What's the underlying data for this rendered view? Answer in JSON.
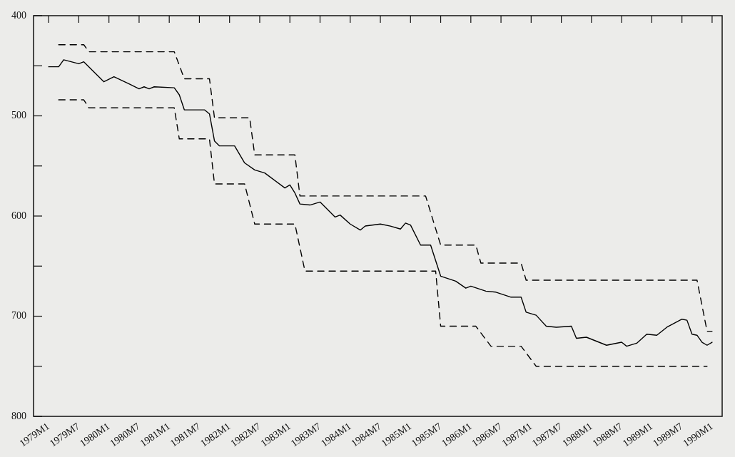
{
  "chart_data": {
    "type": "line",
    "line_style": "solid",
    "marker": "none",
    "grid": false,
    "legend": false,
    "xlim": [
      "1978-10",
      "1990-03"
    ],
    "xticks": [
      {
        "value": "1979-01",
        "label": "1979M1"
      },
      {
        "value": "1979-07",
        "label": "1979M7"
      },
      {
        "value": "1980-01",
        "label": "1980M1"
      },
      {
        "value": "1980-07",
        "label": "1980M7"
      },
      {
        "value": "1981-01",
        "label": "1981M1"
      },
      {
        "value": "1981-07",
        "label": "1981M7"
      },
      {
        "value": "1982-01",
        "label": "1982M1"
      },
      {
        "value": "1982-07",
        "label": "1982M7"
      },
      {
        "value": "1983-01",
        "label": "1983M1"
      },
      {
        "value": "1983-07",
        "label": "1983M7"
      },
      {
        "value": "1984-01",
        "label": "1984M1"
      },
      {
        "value": "1984-07",
        "label": "1984M7"
      },
      {
        "value": "1985-01",
        "label": "1985M1"
      },
      {
        "value": "1985-07",
        "label": "1985M7"
      },
      {
        "value": "1986-01",
        "label": "1986M1"
      },
      {
        "value": "1986-07",
        "label": "1986M7"
      },
      {
        "value": "1987-01",
        "label": "1987M1"
      },
      {
        "value": "1987-07",
        "label": "1987M7"
      },
      {
        "value": "1988-01",
        "label": "1988M1"
      },
      {
        "value": "1988-07",
        "label": "1988M7"
      },
      {
        "value": "1989-01",
        "label": "1989M1"
      },
      {
        "value": "1989-07",
        "label": "1989M7"
      },
      {
        "value": "1990-01",
        "label": "1990M1"
      }
    ],
    "ylim": [
      800,
      400
    ],
    "yticks": [
      400,
      {
        "value": 450,
        "label": null
      },
      500,
      {
        "value": 550,
        "label": null
      },
      600,
      {
        "value": 650,
        "label": null
      },
      700,
      {
        "value": 750,
        "label": null
      },
      800
    ],
    "series": [
      {
        "color": "#000000",
        "x": [
          "1979-01",
          "1979-03",
          "1979-04",
          "1979-07",
          "1979-08",
          "1979-11",
          "1979-12",
          "1980-02",
          "1980-05",
          "1980-07",
          "1980-08",
          "1980-09",
          "1980-10",
          "1981-02",
          "1981-03",
          "1981-04",
          "1981-08",
          "1981-09",
          "1981-10",
          "1981-11",
          "1982-02",
          "1982-04",
          "1982-06",
          "1982-08",
          "1982-12",
          "1983-01",
          "1983-02",
          "1983-03",
          "1983-05",
          "1983-07",
          "1983-10",
          "1983-11",
          "1984-01",
          "1984-03",
          "1984-04",
          "1984-07",
          "1984-09",
          "1984-11",
          "1984-12",
          "1985-01",
          "1985-03",
          "1985-05",
          "1985-07",
          "1985-10",
          "1985-12",
          "1986-01",
          "1986-04",
          "1986-06",
          "1986-09",
          "1986-11",
          "1986-12",
          "1987-02",
          "1987-04",
          "1987-06",
          "1987-09",
          "1987-10",
          "1987-12",
          "1988-04",
          "1988-07",
          "1988-08",
          "1988-10",
          "1988-12",
          "1989-02",
          "1989-04",
          "1989-07",
          "1989-08",
          "1989-09",
          "1989-10",
          "1989-11",
          "1989-12",
          "1990-01"
        ],
        "values": [
          451,
          451,
          444,
          448,
          446,
          461,
          466,
          461,
          468,
          473,
          471,
          473,
          471,
          472,
          479,
          494,
          494,
          498,
          525,
          530,
          530,
          547,
          554,
          557,
          572,
          569,
          577,
          588,
          589,
          586,
          601,
          599,
          608,
          614,
          610,
          608,
          610,
          613,
          607,
          609,
          629,
          629,
          660,
          665,
          672,
          670,
          675,
          676,
          681,
          681,
          696,
          699,
          710,
          711,
          710,
          722,
          721,
          729,
          726,
          730,
          727,
          718,
          719,
          711,
          703,
          704,
          718,
          719,
          726,
          729,
          726
        ]
      },
      {
        "color": "#000000",
        "line_style": "dashed",
        "x": [
          "1979-03",
          "1979-08",
          "1979-09",
          "1981-02",
          "1981-04",
          "1981-09",
          "1981-10",
          "1982-05",
          "1982-06",
          "1983-02",
          "1983-03",
          "1985-04",
          "1985-07",
          "1986-02",
          "1986-03",
          "1986-11",
          "1986-12",
          "1989-10",
          "1989-12",
          "1990-01"
        ],
        "values": [
          429,
          429,
          436,
          436,
          463,
          463,
          502,
          502,
          539,
          539,
          580,
          580,
          629,
          629,
          647,
          647,
          664,
          664,
          715,
          715
        ]
      },
      {
        "color": "#000000",
        "line_style": "dashed",
        "x": [
          "1979-03",
          "1979-08",
          "1979-09",
          "1981-02",
          "1981-03",
          "1981-09",
          "1981-10",
          "1982-04",
          "1982-06",
          "1983-02",
          "1983-04",
          "1985-06",
          "1985-07",
          "1986-02",
          "1986-05",
          "1986-11",
          "1987-02",
          "1989-12"
        ],
        "values": [
          484,
          484,
          492,
          492,
          523,
          523,
          568,
          568,
          608,
          608,
          655,
          655,
          710,
          710,
          730,
          730,
          750,
          750
        ]
      }
    ]
  }
}
